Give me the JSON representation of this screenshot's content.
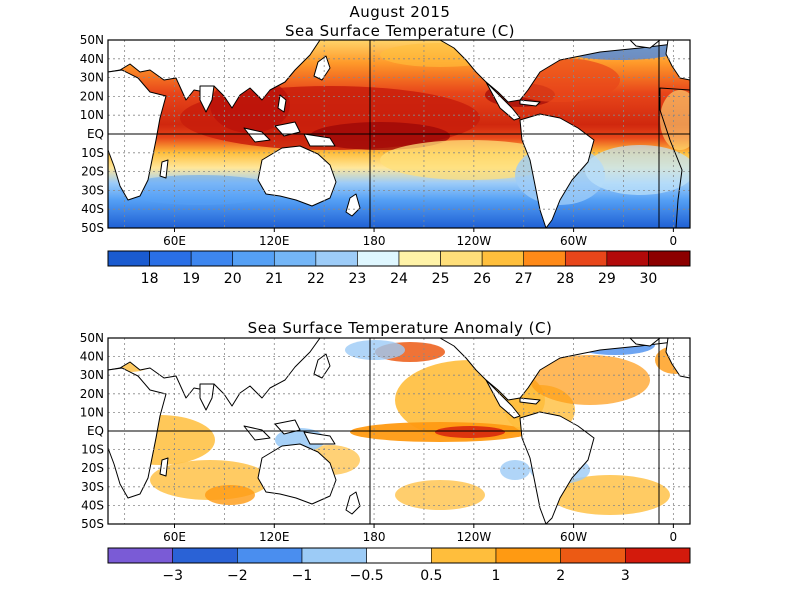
{
  "main_title": "August 2015",
  "panels": [
    {
      "id": "sst",
      "title": "Sea Surface Temperature (C)",
      "lat_labels": [
        "50N",
        "40N",
        "30N",
        "20N",
        "10N",
        "EQ",
        "10S",
        "20S",
        "30S",
        "40S",
        "50S"
      ],
      "lon_labels": [
        "60E",
        "120E",
        "180",
        "120W",
        "60W",
        "0"
      ],
      "colorbar_labels": [
        "18",
        "19",
        "20",
        "21",
        "22",
        "23",
        "24",
        "25",
        "26",
        "27",
        "28",
        "29",
        "30"
      ],
      "colors": [
        "#1a5bd0",
        "#2a6fe6",
        "#3d86ef",
        "#55a0f5",
        "#74b6f7",
        "#9dccf8",
        "#dff7ff",
        "#fff3a8",
        "#ffdf7a",
        "#ffbf3c",
        "#ff8a18",
        "#e8461a",
        "#b20a0a",
        "#8c0000"
      ]
    },
    {
      "id": "anomaly",
      "title": "Sea Surface Temperature Anomaly (C)",
      "lat_labels": [
        "50N",
        "40N",
        "30N",
        "20N",
        "10N",
        "EQ",
        "10S",
        "20S",
        "30S",
        "40S",
        "50S"
      ],
      "lon_labels": [
        "60E",
        "120E",
        "180",
        "120W",
        "60W",
        "0"
      ],
      "colorbar_labels": [
        "−3",
        "−2",
        "−1",
        "−0.5",
        "0.5",
        "1",
        "2",
        "3"
      ],
      "colors": [
        "#7a5bd6",
        "#2a62d6",
        "#4a8eef",
        "#9ccbf6",
        "#ffffff",
        "#ffbe3c",
        "#ff9a12",
        "#ec5a14",
        "#d31a0c"
      ]
    }
  ]
}
